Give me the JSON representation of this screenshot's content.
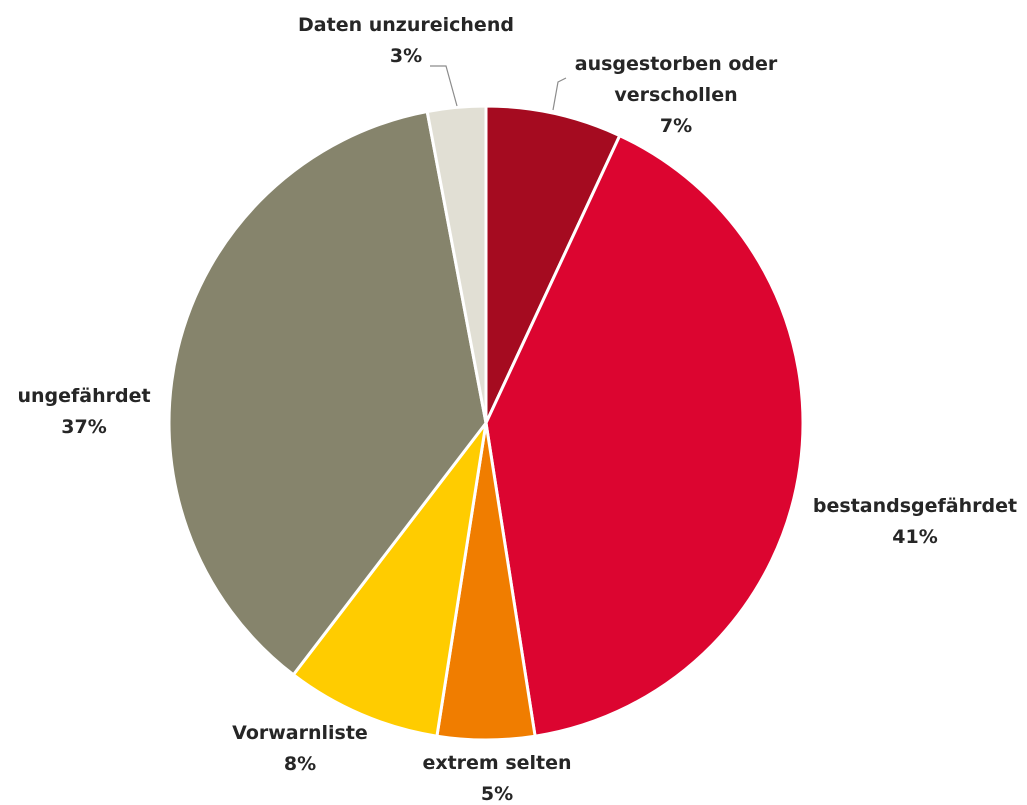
{
  "chart_data": {
    "type": "pie",
    "title": "",
    "start_angle_deg": 0,
    "direction": "clockwise",
    "slice_border_color": "#ffffff",
    "slices": [
      {
        "name_lines": [
          "ausgestorben oder",
          "verschollen"
        ],
        "value": 7,
        "pct_label": "7%",
        "color": "#a50b20"
      },
      {
        "name_lines": [
          "bestandsgefährdet"
        ],
        "value": 41,
        "pct_label": "41%",
        "color": "#dc0530"
      },
      {
        "name_lines": [
          "extrem selten"
        ],
        "value": 5,
        "pct_label": "5%",
        "color": "#f07d00"
      },
      {
        "name_lines": [
          "Vorwarnliste"
        ],
        "value": 8,
        "pct_label": "8%",
        "color": "#ffcc00"
      },
      {
        "name_lines": [
          "ungefährdet"
        ],
        "value": 37,
        "pct_label": "37%",
        "color": "#86846c"
      },
      {
        "name_lines": [
          "Daten unzureichend"
        ],
        "value": 3,
        "pct_label": "3%",
        "color": "#e1dfd4"
      }
    ]
  }
}
